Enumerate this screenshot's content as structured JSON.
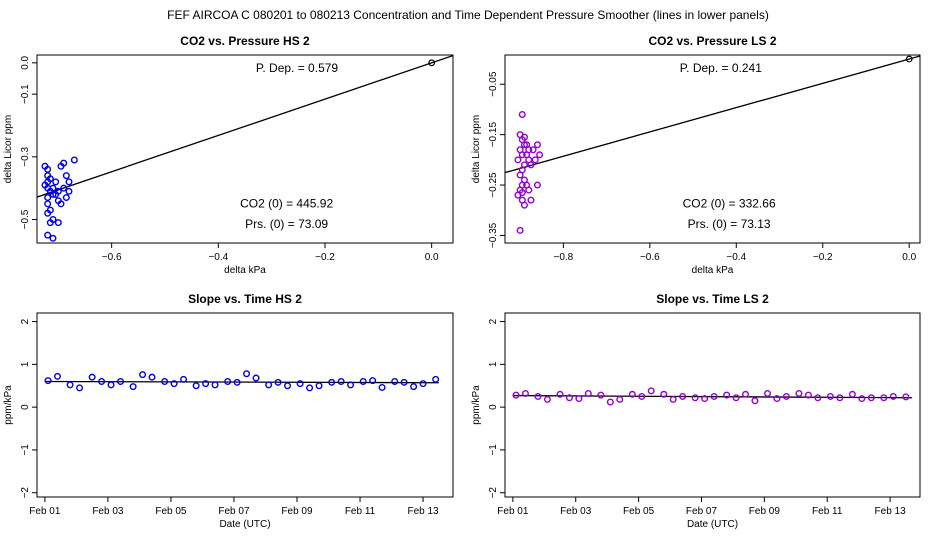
{
  "page": {
    "title": "FEF   AIRCOA C   080201 to 080213   Concentration and Time Dependent Pressure Smoother (lines in lower panels)"
  },
  "chart_data": [
    {
      "type": "scatter",
      "title": "CO2 vs. Pressure HS 2",
      "xlabel": "delta kPa",
      "ylabel": "delta Licor ppm",
      "xlim": [
        -0.74,
        0.04
      ],
      "ylim": [
        -0.575,
        0.025
      ],
      "xticks": [
        -0.6,
        -0.4,
        -0.2,
        0.0
      ],
      "xtick_labels": [
        "−0.6",
        "−0.4",
        "−0.2",
        "0.0"
      ],
      "yticks": [
        0.0,
        -0.1,
        -0.3,
        -0.5
      ],
      "ytick_labels": [
        "0.0",
        "−0.1",
        "−0.3",
        "−0.5"
      ],
      "color": "#0000ee",
      "annotations": {
        "p_dep": "P. Dep. =  0.579",
        "co2_0": "CO2 (0) =  445.92",
        "prs_0": "Prs. (0) =  73.09"
      },
      "fit_line": {
        "slope": 0.579,
        "intercept": 0.0
      },
      "reference_point": [
        0.0,
        0.0
      ],
      "points": [
        [
          -0.725,
          -0.33
        ],
        [
          -0.72,
          -0.34
        ],
        [
          -0.72,
          -0.36
        ],
        [
          -0.715,
          -0.37
        ],
        [
          -0.72,
          -0.38
        ],
        [
          -0.725,
          -0.39
        ],
        [
          -0.72,
          -0.4
        ],
        [
          -0.715,
          -0.41
        ],
        [
          -0.71,
          -0.42
        ],
        [
          -0.72,
          -0.43
        ],
        [
          -0.72,
          -0.45
        ],
        [
          -0.715,
          -0.47
        ],
        [
          -0.72,
          -0.48
        ],
        [
          -0.71,
          -0.5
        ],
        [
          -0.715,
          -0.51
        ],
        [
          -0.72,
          -0.55
        ],
        [
          -0.71,
          -0.56
        ],
        [
          -0.705,
          -0.38
        ],
        [
          -0.71,
          -0.4
        ],
        [
          -0.7,
          -0.41
        ],
        [
          -0.705,
          -0.42
        ],
        [
          -0.7,
          -0.44
        ],
        [
          -0.695,
          -0.45
        ],
        [
          -0.7,
          -0.51
        ],
        [
          -0.695,
          -0.33
        ],
        [
          -0.69,
          -0.32
        ],
        [
          -0.685,
          -0.36
        ],
        [
          -0.69,
          -0.4
        ],
        [
          -0.685,
          -0.43
        ],
        [
          -0.68,
          -0.38
        ],
        [
          -0.68,
          -0.41
        ],
        [
          -0.67,
          -0.31
        ]
      ]
    },
    {
      "type": "scatter",
      "title": "CO2 vs. Pressure LS 2",
      "xlabel": "delta kPa",
      "ylabel": "delta Licor ppm",
      "xlim": [
        -0.935,
        0.025
      ],
      "ylim": [
        -0.365,
        0.008
      ],
      "xticks": [
        -0.8,
        -0.6,
        -0.4,
        -0.2,
        0.0
      ],
      "xtick_labels": [
        "−0.8",
        "−0.6",
        "−0.4",
        "−0.2",
        "0.0"
      ],
      "yticks": [
        -0.05,
        -0.15,
        -0.25,
        -0.35
      ],
      "ytick_labels": [
        "−0.05",
        "−0.15",
        "−0.25",
        "−0.35"
      ],
      "color": "#9400d3",
      "annotations": {
        "p_dep": "P. Dep. =  0.241",
        "co2_0": "CO2 (0) =  332.66",
        "prs_0": "Prs. (0) =  73.13"
      },
      "fit_line": {
        "slope": 0.241,
        "intercept": 0.0
      },
      "reference_point": [
        0.0,
        0.0
      ],
      "points": [
        [
          -0.895,
          -0.11
        ],
        [
          -0.9,
          -0.15
        ],
        [
          -0.895,
          -0.16
        ],
        [
          -0.89,
          -0.17
        ],
        [
          -0.9,
          -0.18
        ],
        [
          -0.895,
          -0.19
        ],
        [
          -0.905,
          -0.2
        ],
        [
          -0.89,
          -0.21
        ],
        [
          -0.895,
          -0.22
        ],
        [
          -0.9,
          -0.23
        ],
        [
          -0.89,
          -0.24
        ],
        [
          -0.895,
          -0.25
        ],
        [
          -0.9,
          -0.26
        ],
        [
          -0.905,
          -0.27
        ],
        [
          -0.895,
          -0.28
        ],
        [
          -0.89,
          -0.29
        ],
        [
          -0.9,
          -0.34
        ],
        [
          -0.885,
          -0.17
        ],
        [
          -0.88,
          -0.18
        ],
        [
          -0.885,
          -0.19
        ],
        [
          -0.88,
          -0.2
        ],
        [
          -0.875,
          -0.21
        ],
        [
          -0.885,
          -0.25
        ],
        [
          -0.88,
          -0.26
        ],
        [
          -0.875,
          -0.28
        ],
        [
          -0.87,
          -0.18
        ],
        [
          -0.865,
          -0.2
        ],
        [
          -0.86,
          -0.25
        ],
        [
          -0.86,
          -0.17
        ],
        [
          -0.855,
          -0.19
        ],
        [
          -0.89,
          -0.155
        ],
        [
          -0.895,
          -0.265
        ]
      ]
    },
    {
      "type": "scatter",
      "title": "Slope vs. Time HS 2",
      "xlabel": "Date (UTC)",
      "ylabel": "ppm/kPa",
      "xlim": [
        0.75,
        13.95
      ],
      "ylim": [
        -2.1,
        2.2
      ],
      "xticks": [
        1,
        3,
        5,
        7,
        9,
        11,
        13
      ],
      "xtick_labels": [
        "Feb 01",
        "Feb 03",
        "Feb 05",
        "Feb 07",
        "Feb 09",
        "Feb 11",
        "Feb 13"
      ],
      "yticks": [
        -2,
        -1,
        0,
        1,
        2
      ],
      "ytick_labels": [
        "−2",
        "−1",
        "0",
        "1",
        "2"
      ],
      "color": "#0000ee",
      "smoother": [
        [
          1.0,
          0.6
        ],
        [
          13.5,
          0.57
        ]
      ],
      "points": [
        [
          1.1,
          0.62
        ],
        [
          1.4,
          0.72
        ],
        [
          1.8,
          0.52
        ],
        [
          2.1,
          0.45
        ],
        [
          2.5,
          0.7
        ],
        [
          2.8,
          0.6
        ],
        [
          3.1,
          0.52
        ],
        [
          3.4,
          0.6
        ],
        [
          3.8,
          0.48
        ],
        [
          4.1,
          0.76
        ],
        [
          4.4,
          0.7
        ],
        [
          4.8,
          0.6
        ],
        [
          5.1,
          0.55
        ],
        [
          5.4,
          0.65
        ],
        [
          5.8,
          0.5
        ],
        [
          6.1,
          0.55
        ],
        [
          6.4,
          0.52
        ],
        [
          6.8,
          0.6
        ],
        [
          7.1,
          0.58
        ],
        [
          7.4,
          0.78
        ],
        [
          7.7,
          0.68
        ],
        [
          8.1,
          0.52
        ],
        [
          8.4,
          0.58
        ],
        [
          8.7,
          0.5
        ],
        [
          9.1,
          0.55
        ],
        [
          9.4,
          0.45
        ],
        [
          9.7,
          0.5
        ],
        [
          10.1,
          0.58
        ],
        [
          10.4,
          0.6
        ],
        [
          10.7,
          0.52
        ],
        [
          11.1,
          0.6
        ],
        [
          11.4,
          0.62
        ],
        [
          11.7,
          0.46
        ],
        [
          12.1,
          0.6
        ],
        [
          12.4,
          0.58
        ],
        [
          12.7,
          0.48
        ],
        [
          13.0,
          0.55
        ],
        [
          13.4,
          0.65
        ]
      ]
    },
    {
      "type": "scatter",
      "title": "Slope vs. Time LS 2",
      "xlabel": "Date (UTC)",
      "ylabel": "ppm/kPa",
      "xlim": [
        0.75,
        13.95
      ],
      "ylim": [
        -2.1,
        2.2
      ],
      "xticks": [
        1,
        3,
        5,
        7,
        9,
        11,
        13
      ],
      "xtick_labels": [
        "Feb 01",
        "Feb 03",
        "Feb 05",
        "Feb 07",
        "Feb 09",
        "Feb 11",
        "Feb 13"
      ],
      "yticks": [
        -2,
        -1,
        0,
        1,
        2
      ],
      "ytick_labels": [
        "−2",
        "−1",
        "0",
        "1",
        "2"
      ],
      "color": "#9400d3",
      "smoother": [
        [
          1.0,
          0.27
        ],
        [
          13.7,
          0.22
        ]
      ],
      "points": [
        [
          1.1,
          0.28
        ],
        [
          1.4,
          0.32
        ],
        [
          1.8,
          0.25
        ],
        [
          2.1,
          0.18
        ],
        [
          2.5,
          0.3
        ],
        [
          2.8,
          0.22
        ],
        [
          3.1,
          0.2
        ],
        [
          3.4,
          0.32
        ],
        [
          3.8,
          0.28
        ],
        [
          4.1,
          0.12
        ],
        [
          4.4,
          0.18
        ],
        [
          4.8,
          0.3
        ],
        [
          5.1,
          0.25
        ],
        [
          5.4,
          0.38
        ],
        [
          5.8,
          0.3
        ],
        [
          6.1,
          0.18
        ],
        [
          6.4,
          0.25
        ],
        [
          6.8,
          0.22
        ],
        [
          7.1,
          0.2
        ],
        [
          7.4,
          0.25
        ],
        [
          7.8,
          0.28
        ],
        [
          8.1,
          0.22
        ],
        [
          8.4,
          0.3
        ],
        [
          8.7,
          0.15
        ],
        [
          9.1,
          0.32
        ],
        [
          9.4,
          0.2
        ],
        [
          9.7,
          0.25
        ],
        [
          10.1,
          0.32
        ],
        [
          10.4,
          0.28
        ],
        [
          10.7,
          0.22
        ],
        [
          11.1,
          0.25
        ],
        [
          11.4,
          0.22
        ],
        [
          11.8,
          0.3
        ],
        [
          12.1,
          0.2
        ],
        [
          12.4,
          0.22
        ],
        [
          12.8,
          0.22
        ],
        [
          13.1,
          0.25
        ],
        [
          13.5,
          0.24
        ]
      ]
    }
  ]
}
